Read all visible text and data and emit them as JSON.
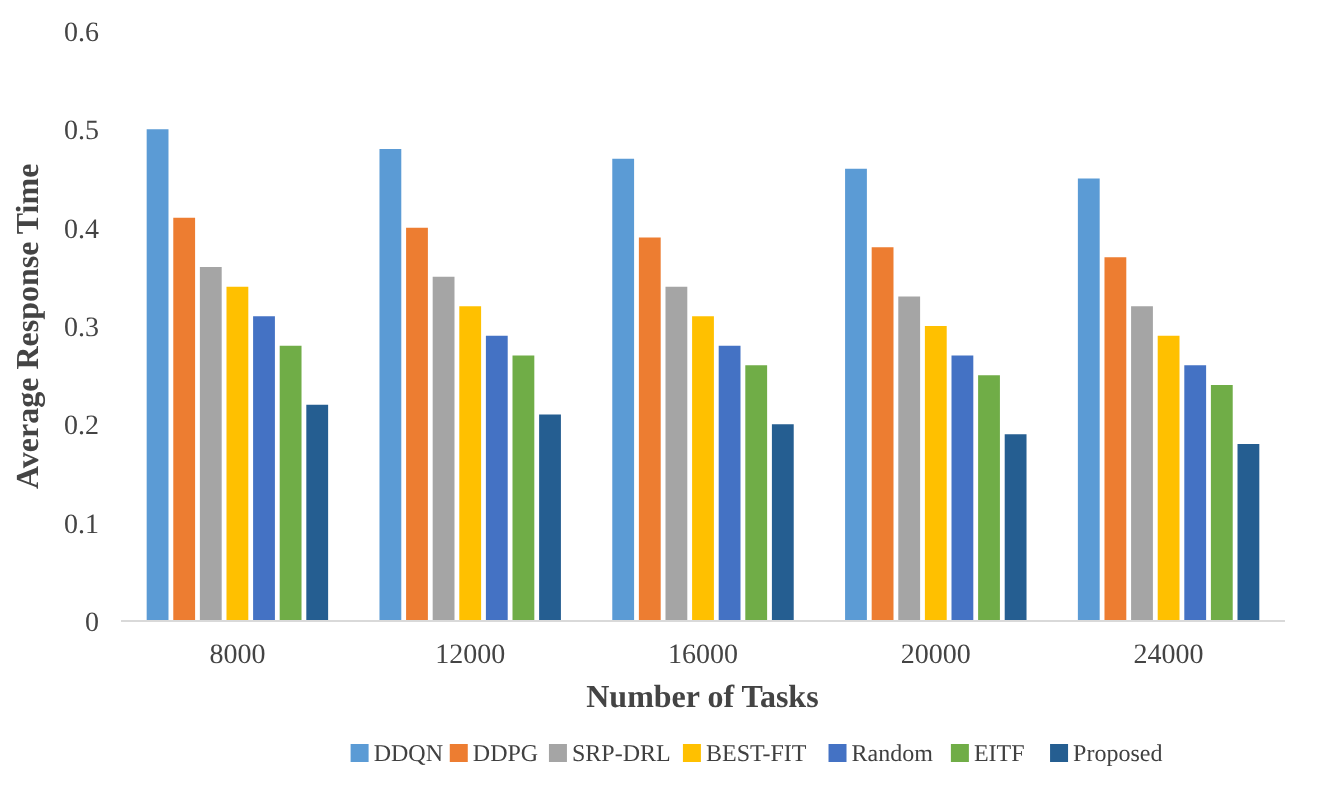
{
  "chart_data": {
    "type": "bar",
    "xlabel": "Number of Tasks",
    "ylabel": "Average Response Time",
    "categories": [
      "8000",
      "12000",
      "16000",
      "20000",
      "24000"
    ],
    "ylim": [
      0,
      0.6
    ],
    "yticks": [
      0,
      0.1,
      0.2,
      0.3,
      0.4,
      0.5,
      0.6
    ],
    "grid": false,
    "legend": "bottom",
    "series": [
      {
        "name": "DDQN",
        "color": "#5b9bd5",
        "values": [
          0.5,
          0.48,
          0.47,
          0.46,
          0.45
        ]
      },
      {
        "name": "DDPG",
        "color": "#ed7d31",
        "values": [
          0.41,
          0.4,
          0.39,
          0.38,
          0.37
        ]
      },
      {
        "name": "SRP-DRL",
        "color": "#a5a5a5",
        "values": [
          0.36,
          0.35,
          0.34,
          0.33,
          0.32
        ]
      },
      {
        "name": "BEST-FIT",
        "color": "#ffc000",
        "values": [
          0.34,
          0.32,
          0.31,
          0.3,
          0.29
        ]
      },
      {
        "name": "Random",
        "color": "#4472c4",
        "values": [
          0.31,
          0.29,
          0.28,
          0.27,
          0.26
        ]
      },
      {
        "name": "EITF",
        "color": "#70ad47",
        "values": [
          0.28,
          0.27,
          0.26,
          0.25,
          0.24
        ]
      },
      {
        "name": "Proposed",
        "color": "#255e91",
        "values": [
          0.22,
          0.21,
          0.2,
          0.19,
          0.18
        ]
      }
    ]
  }
}
